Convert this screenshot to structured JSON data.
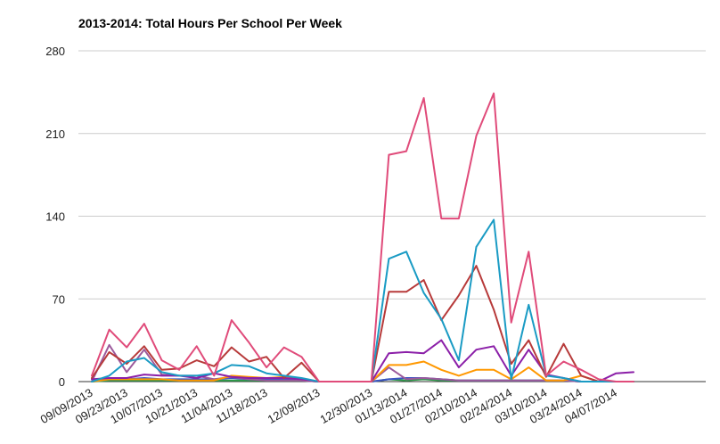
{
  "chart_data": {
    "type": "line",
    "title": "2013-2014: Total Hours Per School Per Week",
    "xlabel": "",
    "ylabel": "",
    "ylim": [
      0,
      280
    ],
    "yticks": [
      "0",
      "70",
      "140",
      "210",
      "280"
    ],
    "grid": true,
    "legend": "none",
    "x": [
      "09/09/2013",
      "09/16/2013",
      "09/23/2013",
      "09/30/2013",
      "10/07/2013",
      "10/14/2013",
      "10/21/2013",
      "10/28/2013",
      "11/04/2013",
      "11/11/2013",
      "11/18/2013",
      "11/25/2013",
      "12/02/2013",
      "12/09/2013",
      "12/16/2013",
      "12/23/2013",
      "12/30/2013",
      "01/06/2014",
      "01/13/2014",
      "01/20/2014",
      "01/27/2014",
      "02/03/2014",
      "02/10/2014",
      "02/17/2014",
      "02/24/2014",
      "03/03/2014",
      "03/10/2014",
      "03/17/2014",
      "03/24/2014",
      "03/31/2014",
      "04/07/2014",
      "04/14/2014"
    ],
    "xtick_labels": [
      "09/09/2013",
      "09/23/2013",
      "10/07/2013",
      "10/21/2013",
      "11/04/2013",
      "11/18/2013",
      "12/09/2013",
      "12/30/2013",
      "01/13/2014",
      "01/27/2014",
      "02/10/2014",
      "02/24/2014",
      "03/10/2014",
      "03/24/2014",
      "04/07/2014"
    ],
    "series": [
      {
        "color": "#e04b7a",
        "values": [
          5,
          44,
          29,
          49,
          18,
          10,
          30,
          5,
          52,
          33,
          12,
          29,
          21,
          0,
          null,
          null,
          null,
          192,
          195,
          240,
          138,
          138,
          208,
          244,
          50,
          110,
          5,
          17,
          10,
          2,
          null,
          null
        ]
      },
      {
        "color": "#1a9bc4",
        "values": [
          0,
          5,
          17,
          20,
          8,
          5,
          5,
          7,
          14,
          13,
          7,
          5,
          3,
          0,
          null,
          null,
          null,
          104,
          110,
          75,
          53,
          18,
          114,
          137,
          2,
          65,
          5,
          3,
          0,
          0,
          null,
          null
        ]
      },
      {
        "color": "#b73a3a",
        "values": [
          3,
          25,
          15,
          30,
          10,
          11,
          18,
          13,
          29,
          17,
          21,
          3,
          16,
          0,
          null,
          null,
          null,
          76,
          76,
          86,
          52,
          73,
          98,
          61,
          15,
          35,
          4,
          32,
          5,
          0,
          null,
          null
        ]
      },
      {
        "color": "#8b1fa8",
        "values": [
          2,
          3,
          3,
          6,
          5,
          5,
          3,
          7,
          4,
          3,
          3,
          3,
          2,
          0,
          null,
          null,
          null,
          24,
          25,
          24,
          35,
          12,
          27,
          30,
          5,
          27,
          6,
          3,
          0,
          0,
          7,
          8
        ]
      },
      {
        "color": "#ff9800",
        "values": [
          0,
          2,
          2,
          2,
          2,
          1,
          1,
          1,
          5,
          4,
          3,
          4,
          2,
          0,
          null,
          null,
          null,
          14,
          14,
          17,
          10,
          5,
          10,
          10,
          2,
          12,
          1,
          1,
          5,
          0,
          null,
          null
        ]
      },
      {
        "color": "#9c5a9c",
        "values": [
          0,
          31,
          8,
          27,
          6,
          5,
          5,
          2,
          4,
          2,
          1,
          1,
          1,
          0,
          null,
          null,
          null,
          12,
          2,
          3,
          2,
          1,
          1,
          1,
          1,
          1,
          1,
          1,
          0,
          0,
          null,
          null
        ]
      },
      {
        "color": "#3b53c4",
        "values": [
          0,
          2,
          2,
          3,
          2,
          2,
          2,
          2,
          3,
          2,
          2,
          2,
          1,
          0,
          null,
          null,
          null,
          2,
          3,
          3,
          2,
          1,
          1,
          1,
          1,
          1,
          1,
          1,
          0,
          0,
          null,
          null
        ]
      },
      {
        "color": "#2e9e4a",
        "values": [
          0,
          1,
          1,
          1,
          1,
          1,
          1,
          1,
          1,
          1,
          1,
          1,
          1,
          0,
          null,
          null,
          null,
          2,
          1,
          2,
          1,
          1,
          1,
          1,
          1,
          1,
          1,
          1,
          0,
          0,
          null,
          null
        ]
      }
    ]
  }
}
